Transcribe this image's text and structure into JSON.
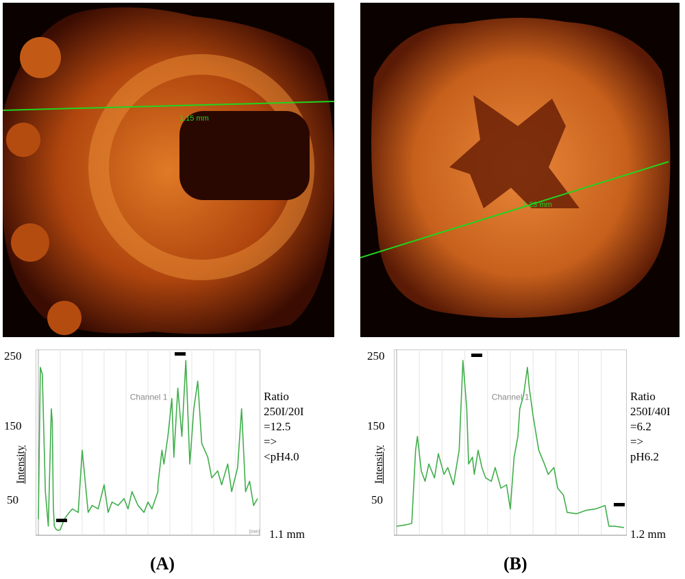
{
  "panels": [
    {
      "id": "A",
      "label": "(A)",
      "line_label": "1.15 mm",
      "plot_caption": "Channel 1",
      "ylabel": "Intensity",
      "yticks": [
        "250",
        "150",
        "50"
      ],
      "unit_label": "1.1 mm",
      "axis_unit": "[mm]",
      "ratio_text": "Ratio\n250I/20I\n=12.5\n =>\n<pH4.0"
    },
    {
      "id": "B",
      "label": "(B)",
      "line_label": "1.23 mm",
      "plot_caption": "Channel 1",
      "ylabel": "Intensity",
      "yticks": [
        "250",
        "150",
        "50"
      ],
      "unit_label": "1.2 mm",
      "ratio_text": "Ratio\n250I/40I\n=6.2\n=>\npH6.2"
    }
  ],
  "colors": {
    "trace": "#3fae4a",
    "scanline": "#1fd51f",
    "tissue": "#d86a1c",
    "background": "#0b0200"
  },
  "chart_data": [
    {
      "type": "line",
      "title": "Channel 1",
      "ylabel": "Intensity",
      "xlabel": "1.1 mm",
      "ylim": [
        0,
        260
      ],
      "xlim": [
        0,
        1.1
      ],
      "grid": true,
      "series": [
        {
          "x": [
            0,
            0.01,
            0.02,
            0.035,
            0.05,
            0.065,
            0.07,
            0.075,
            0.08,
            0.09,
            0.1,
            0.11,
            0.13,
            0.15,
            0.17,
            0.2,
            0.22,
            0.25,
            0.27,
            0.3,
            0.33,
            0.35,
            0.37,
            0.4,
            0.43,
            0.45,
            0.47,
            0.5,
            0.53,
            0.55,
            0.57,
            0.6,
            0.6,
            0.62,
            0.63,
            0.65,
            0.67,
            0.68,
            0.7,
            0.72,
            0.74,
            0.76,
            0.78,
            0.8,
            0.82,
            0.85,
            0.87,
            0.9,
            0.92,
            0.95,
            0.97,
            1.0,
            1.02,
            1.04,
            1.06,
            1.08,
            1.1
          ],
          "y": [
            20,
            240,
            230,
            60,
            10,
            180,
            160,
            40,
            10,
            5,
            4,
            5,
            20,
            28,
            35,
            30,
            120,
            30,
            40,
            35,
            70,
            30,
            45,
            40,
            50,
            35,
            60,
            40,
            30,
            45,
            35,
            60,
            70,
            120,
            100,
            140,
            195,
            110,
            210,
            140,
            250,
            100,
            180,
            220,
            130,
            110,
            80,
            90,
            70,
            100,
            60,
            95,
            180,
            60,
            75,
            40,
            50
          ]
        }
      ]
    },
    {
      "type": "line",
      "title": "Channel 1",
      "ylabel": "Intensity",
      "xlabel": "1.2 mm",
      "ylim": [
        0,
        260
      ],
      "xlim": [
        0,
        1.2
      ],
      "grid": true,
      "series": [
        {
          "x": [
            0,
            0.05,
            0.08,
            0.1,
            0.11,
            0.13,
            0.15,
            0.17,
            0.2,
            0.22,
            0.25,
            0.27,
            0.3,
            0.33,
            0.35,
            0.37,
            0.38,
            0.4,
            0.41,
            0.43,
            0.45,
            0.47,
            0.5,
            0.52,
            0.55,
            0.58,
            0.6,
            0.62,
            0.64,
            0.65,
            0.67,
            0.69,
            0.7,
            0.72,
            0.75,
            0.78,
            0.8,
            0.83,
            0.85,
            0.88,
            0.9,
            0.95,
            1.0,
            1.05,
            1.1,
            1.12,
            1.15,
            1.2
          ],
          "y": [
            10,
            12,
            14,
            120,
            140,
            90,
            75,
            100,
            80,
            115,
            85,
            95,
            70,
            120,
            250,
            180,
            100,
            110,
            85,
            120,
            95,
            80,
            75,
            95,
            65,
            70,
            35,
            110,
            140,
            180,
            200,
            240,
            210,
            170,
            120,
            100,
            85,
            95,
            65,
            55,
            30,
            28,
            33,
            35,
            40,
            10,
            10,
            8
          ]
        }
      ]
    }
  ]
}
